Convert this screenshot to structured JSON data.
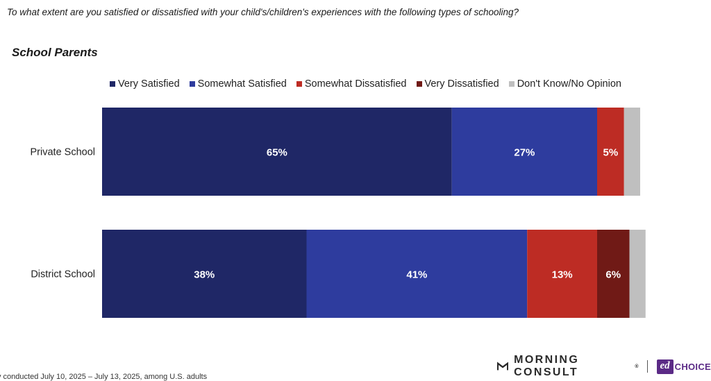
{
  "question": "To what extent are you satisfied or dissatisfied with your child's/children's experiences with the following types of schooling?",
  "subtitle": "School Parents",
  "footnote": "y conducted July 10, 2025 – July 13, 2025, among U.S. adults",
  "brand": {
    "morning_consult": "MORNING CONSULT",
    "reg": "®",
    "ed": "ed",
    "choice": "CHOICE"
  },
  "colors": {
    "very_satisfied": "#1f2766",
    "somewhat_satisfied": "#2e3c9e",
    "somewhat_dissatisfied": "#bd2c24",
    "very_dissatisfied": "#701a16",
    "dont_know": "#bfbfbf"
  },
  "chart_data": {
    "type": "bar",
    "orientation": "horizontal",
    "stacked": true,
    "categories": [
      "Private School",
      "District School"
    ],
    "series": [
      {
        "name": "Very Satisfied",
        "color": "#1f2766",
        "values": [
          65,
          38
        ],
        "labels": [
          "65%",
          "38%"
        ]
      },
      {
        "name": "Somewhat Satisfied",
        "color": "#2e3c9e",
        "values": [
          27,
          41
        ],
        "labels": [
          "27%",
          "41%"
        ]
      },
      {
        "name": "Somewhat Dissatisfied",
        "color": "#bd2c24",
        "values": [
          5,
          13
        ],
        "labels": [
          "5%",
          "13%"
        ]
      },
      {
        "name": "Very Dissatisfied",
        "color": "#701a16",
        "values": [
          0,
          6
        ],
        "labels": [
          "",
          "6%"
        ]
      },
      {
        "name": "Don't Know/No Opinion",
        "color": "#bfbfbf",
        "values": [
          3,
          3
        ],
        "labels": [
          "",
          ""
        ]
      }
    ],
    "xlim": [
      0,
      100
    ],
    "legend_position": "top"
  }
}
